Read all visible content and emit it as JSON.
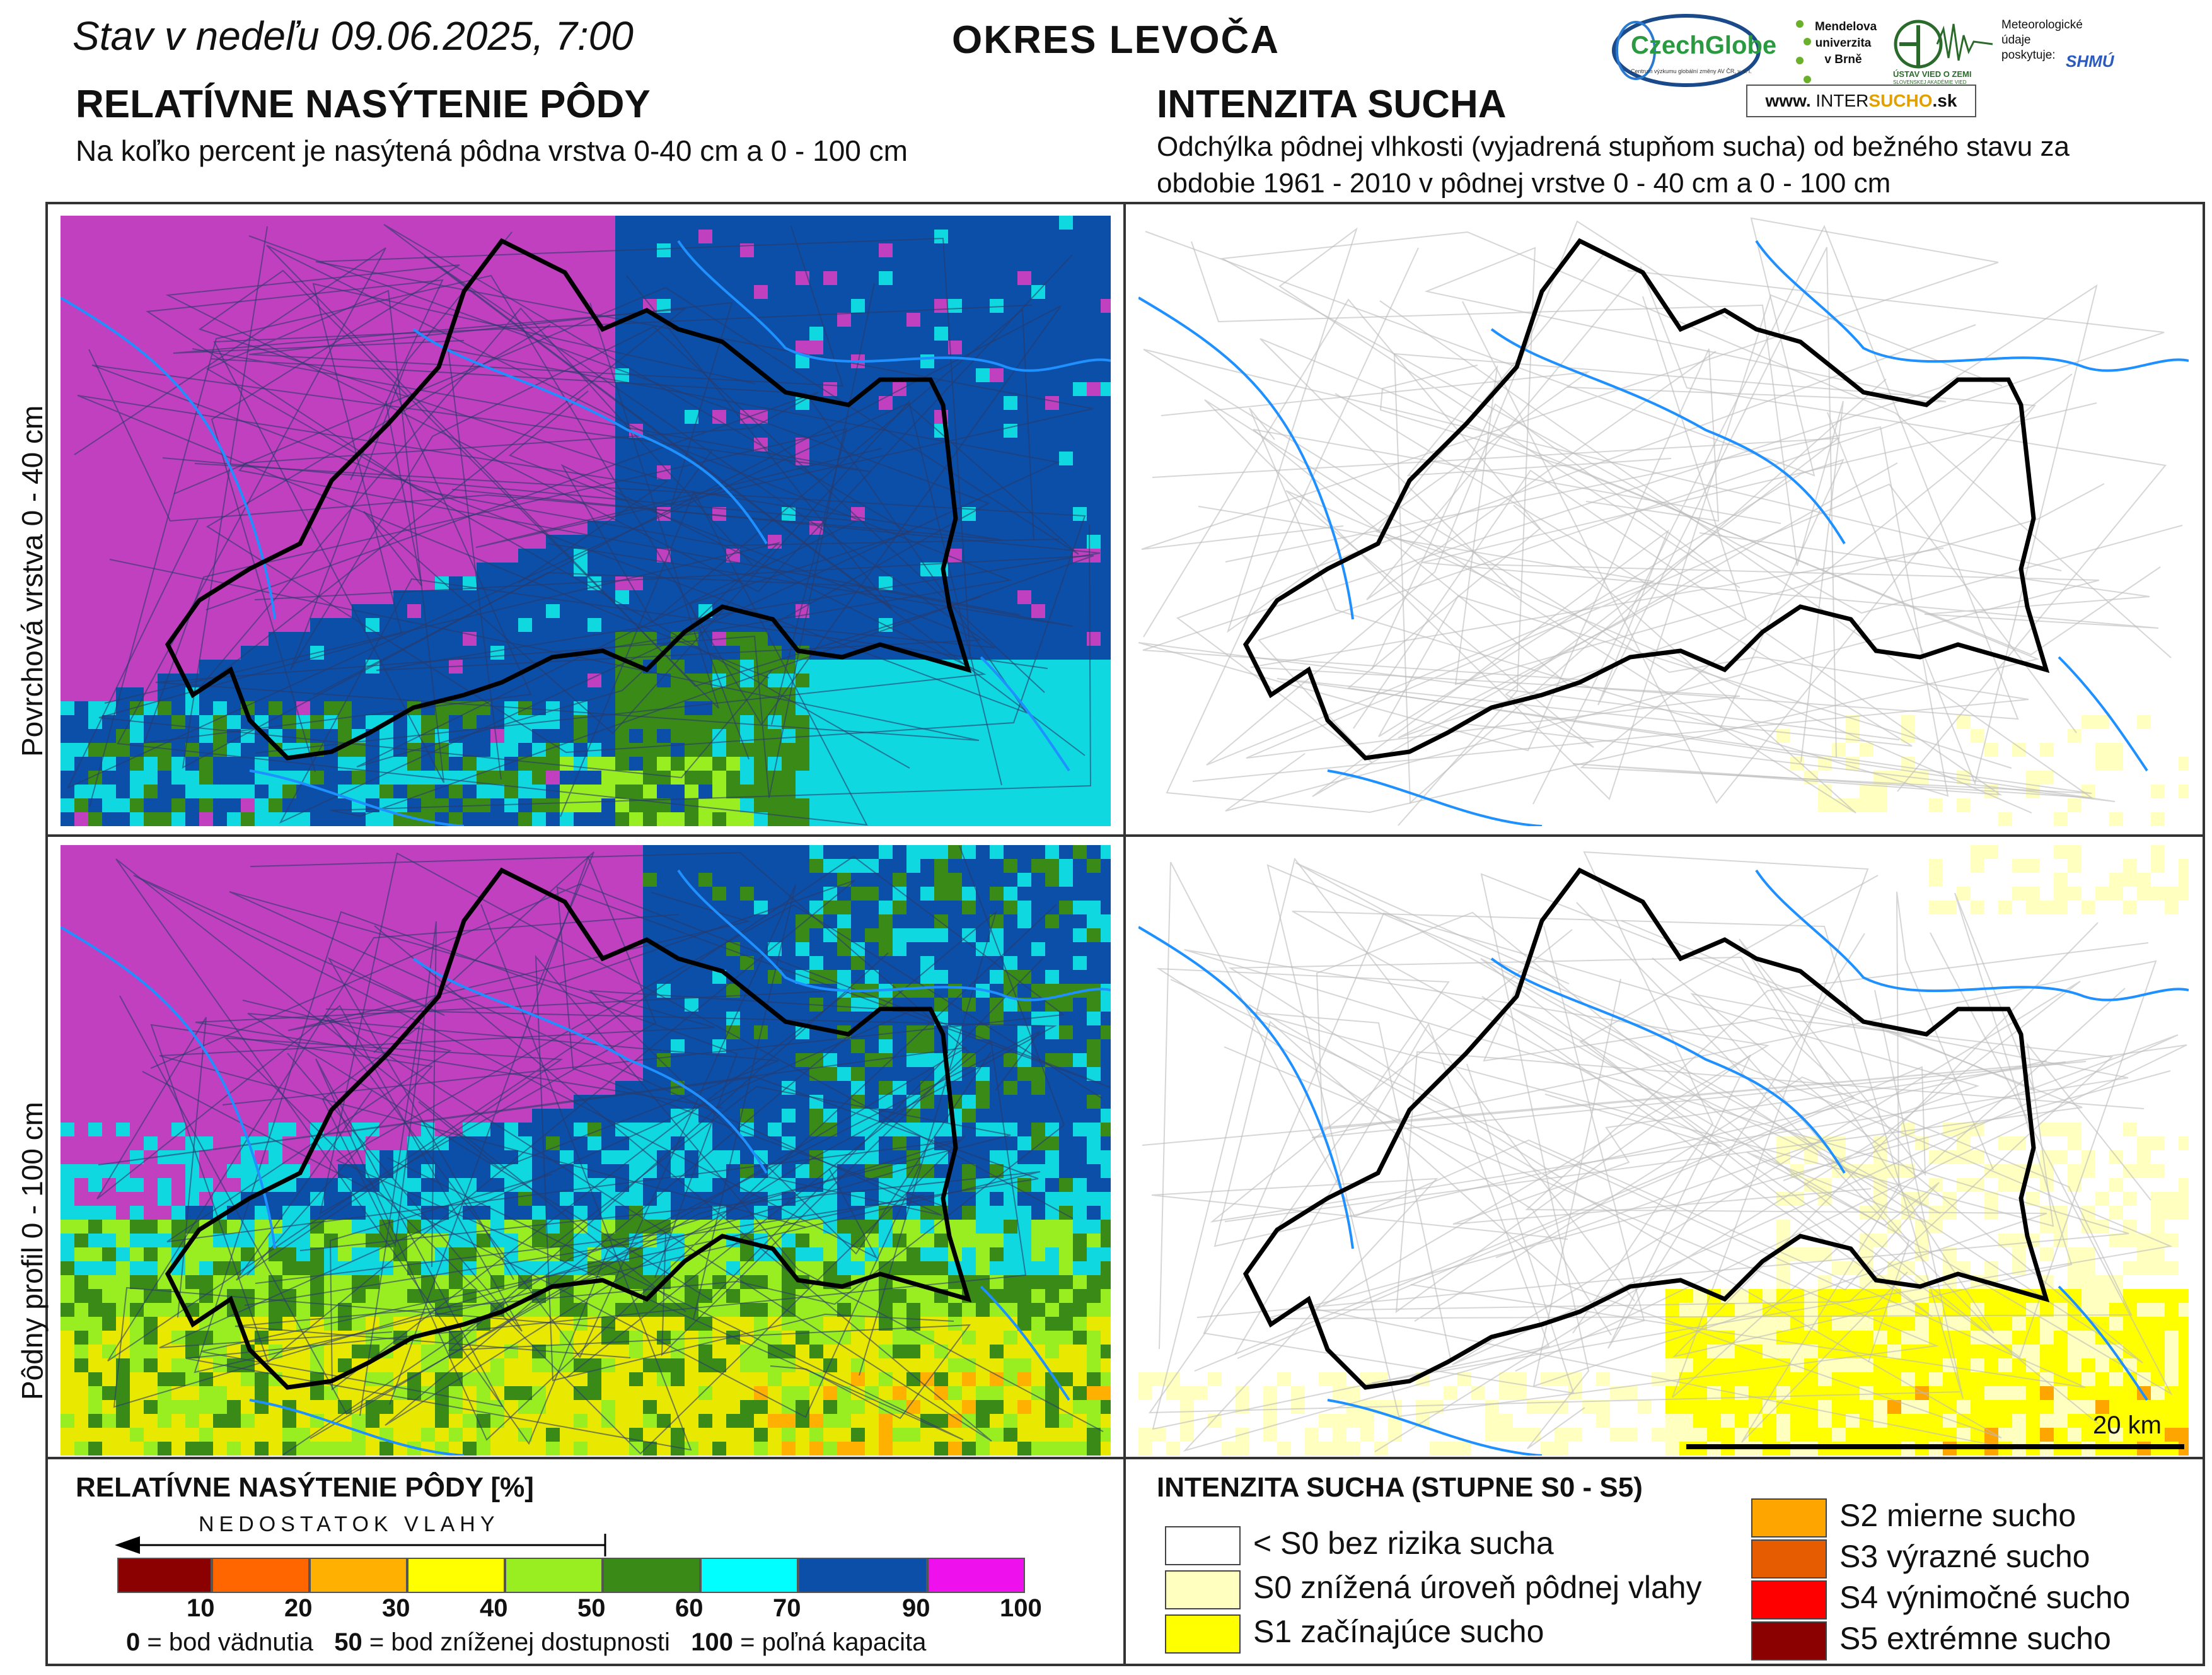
{
  "header": {
    "date": "Stav v nedeľu 09.06.2025, 7:00",
    "district": "OKRES  LEVOČA"
  },
  "logos": {
    "czechglobe": "CzechGlobe",
    "czechglobe_sub": "Centrum výzkumu globální změny AV ČR, v. v. i.",
    "mendel": "Mendelova univerzita v Brně",
    "uvzp": "ÚSTAV VIED O ZEMI",
    "uvzp_sub": "SLOVENSKEJ AKADÉMIE VIED",
    "shmu_note": "Meteorologické údaje poskytuje:",
    "shmu": "SHMÚ",
    "website_prefix": "www.",
    "website_main": "INTER",
    "website_accent": "SUCHO",
    "website_suffix": ".sk"
  },
  "left_panel": {
    "title": "RELATÍVNE NASÝTENIE PÔDY",
    "subtitle": "Na koľko percent je nasýtená pôdna vrstva 0-40 cm a 0 - 100 cm"
  },
  "right_panel": {
    "title": "INTENZITA SUCHA",
    "subtitle": "Odchýlka pôdnej vlhkosti (vyjadrená stupňom sucha) od bežného stavu za obdobie 1961 - 2010 v pôdnej vrstve 0 - 40 cm a 0 - 100 cm"
  },
  "rows": {
    "top": "Povrchová vrstva 0 - 40 cm",
    "bottom": "Pôdny profil 0 - 100 cm"
  },
  "scale_bar": {
    "label": "20 km"
  },
  "saturation_legend": {
    "title": "RELATÍVNE NASÝTENIE PÔDY [%]",
    "arrow_label": "NEDOSTATOK VLAHY",
    "bins": [
      {
        "color": "#8b0000",
        "upper": "10"
      },
      {
        "color": "#ff6600",
        "upper": "20"
      },
      {
        "color": "#ffb000",
        "upper": "30"
      },
      {
        "color": "#ffff00",
        "upper": "40"
      },
      {
        "color": "#99ee22",
        "upper": "50"
      },
      {
        "color": "#3a8a18",
        "upper": "60"
      },
      {
        "color": "#00ffff",
        "upper": "70"
      },
      {
        "color": "#0b4fa8",
        "upper": "90"
      },
      {
        "color": "#ee11ee",
        "upper": "100"
      }
    ],
    "note_0_num": "0",
    "note_0_text": " = bod vädnutia",
    "note_50_num": "50",
    "note_50_text": " = bod zníženej dostupnosti",
    "note_100_num": "100",
    "note_100_text": " = poľná kapacita"
  },
  "drought_legend": {
    "title": "INTENZITA SUCHA (STUPNE S0 - S5)",
    "items": [
      {
        "color": "#ffffff",
        "label": "< S0 bez rizika sucha"
      },
      {
        "color": "#ffffc0",
        "label": "S0 znížená úroveň pôdnej vlahy"
      },
      {
        "color": "#ffff00",
        "label": "S1 začínajúce sucho"
      },
      {
        "color": "#ffa500",
        "label": "S2 mierne sucho"
      },
      {
        "color": "#e65c00",
        "label": "S3 výrazné sucho"
      },
      {
        "color": "#ff0000",
        "label": "S4 výnimočné sucho"
      },
      {
        "color": "#8b0000",
        "label": "S5 extrémne sucho"
      }
    ]
  }
}
